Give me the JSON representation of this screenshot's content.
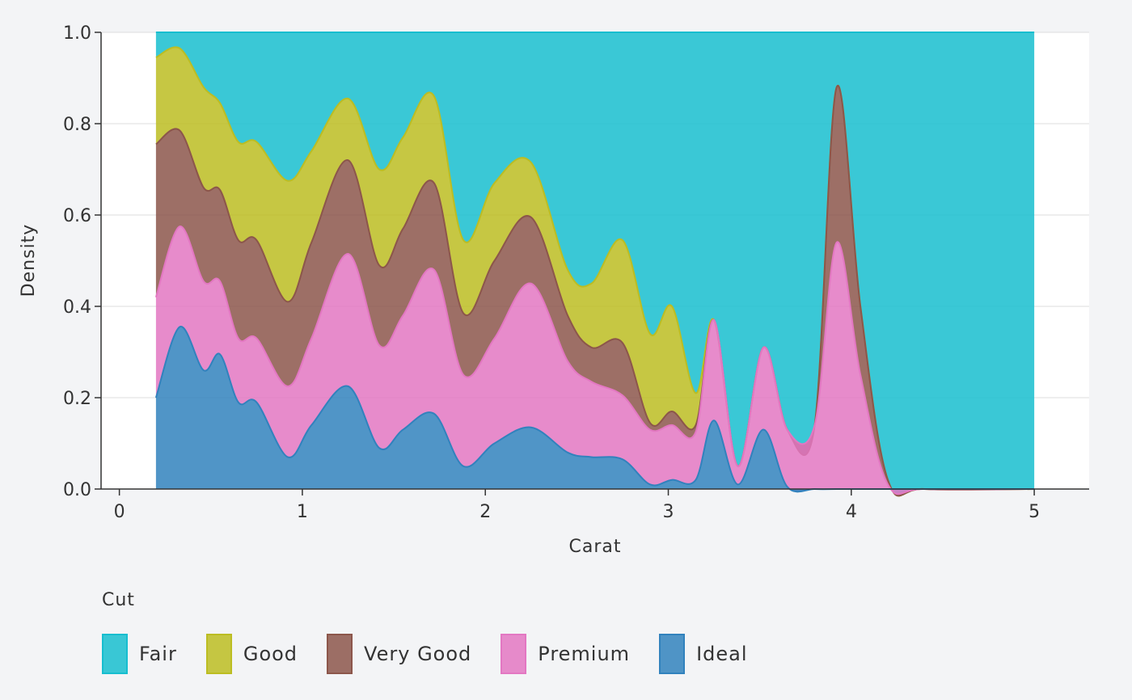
{
  "chart_data": {
    "type": "area",
    "xlabel": "Carat",
    "ylabel": "Density",
    "xlim": [
      -0.1,
      5.3
    ],
    "ylim": [
      0,
      1
    ],
    "xticks": [
      "0",
      "1",
      "2",
      "3",
      "4",
      "5"
    ],
    "yticks": [
      "0.0",
      "0.2",
      "0.4",
      "0.6",
      "0.8",
      "1.0"
    ],
    "grid": "horizontal",
    "stacked": "fill",
    "legend_title": "Cut",
    "legend_position": "bottom",
    "x": [
      0.2,
      0.33,
      0.46,
      0.55,
      0.65,
      0.75,
      0.92,
      1.05,
      1.25,
      1.42,
      1.55,
      1.72,
      1.88,
      2.05,
      2.25,
      2.45,
      2.58,
      2.75,
      2.9,
      3.02,
      3.15,
      3.25,
      3.38,
      3.52,
      3.65,
      3.8,
      3.92,
      4.05,
      4.2,
      4.4,
      5.0
    ],
    "series": [
      {
        "name": "Ideal",
        "color": "#3182bd",
        "upper": [
          0.2,
          0.355,
          0.26,
          0.295,
          0.19,
          0.19,
          0.07,
          0.14,
          0.225,
          0.09,
          0.13,
          0.165,
          0.05,
          0.1,
          0.135,
          0.08,
          0.07,
          0.065,
          0.01,
          0.02,
          0.02,
          0.15,
          0.01,
          0.13,
          0.005,
          0.0,
          0.0,
          0.0,
          0.0,
          0.0,
          0.0
        ]
      },
      {
        "name": "Premium",
        "color": "#e377c2",
        "upper": [
          0.42,
          0.575,
          0.455,
          0.455,
          0.33,
          0.33,
          0.225,
          0.33,
          0.515,
          0.315,
          0.38,
          0.48,
          0.25,
          0.33,
          0.45,
          0.28,
          0.235,
          0.205,
          0.13,
          0.14,
          0.125,
          0.37,
          0.05,
          0.31,
          0.13,
          0.14,
          0.54,
          0.25,
          0.01,
          0.0,
          0.0
        ]
      },
      {
        "name": "Very Good",
        "color": "#8c564b",
        "upper": [
          0.755,
          0.785,
          0.66,
          0.655,
          0.545,
          0.545,
          0.41,
          0.54,
          0.72,
          0.49,
          0.57,
          0.67,
          0.385,
          0.5,
          0.595,
          0.38,
          0.31,
          0.32,
          0.145,
          0.17,
          0.14,
          0.37,
          0.05,
          0.31,
          0.13,
          0.14,
          0.88,
          0.4,
          0.02,
          0.0,
          0.0
        ]
      },
      {
        "name": "Good",
        "color": "#bcbd22",
        "upper": [
          0.945,
          0.965,
          0.88,
          0.845,
          0.76,
          0.76,
          0.675,
          0.74,
          0.855,
          0.7,
          0.77,
          0.86,
          0.545,
          0.67,
          0.715,
          0.48,
          0.45,
          0.545,
          0.34,
          0.4,
          0.21,
          0.37,
          0.05,
          0.31,
          0.13,
          0.14,
          0.88,
          0.4,
          0.02,
          0.0,
          0.0
        ]
      },
      {
        "name": "Fair",
        "color": "#17becf",
        "upper": [
          1.0,
          1.0,
          1.0,
          1.0,
          1.0,
          1.0,
          1.0,
          1.0,
          1.0,
          1.0,
          1.0,
          1.0,
          1.0,
          1.0,
          1.0,
          1.0,
          1.0,
          1.0,
          1.0,
          1.0,
          1.0,
          1.0,
          1.0,
          1.0,
          1.0,
          1.0,
          1.0,
          1.0,
          1.0,
          1.0,
          1.0
        ]
      }
    ]
  },
  "legend": {
    "title": "Cut",
    "items": [
      {
        "label": "Fair",
        "color": "#17becf"
      },
      {
        "label": "Good",
        "color": "#bcbd22"
      },
      {
        "label": "Very Good",
        "color": "#8c564b"
      },
      {
        "label": "Premium",
        "color": "#e377c2"
      },
      {
        "label": "Ideal",
        "color": "#3182bd"
      }
    ]
  }
}
